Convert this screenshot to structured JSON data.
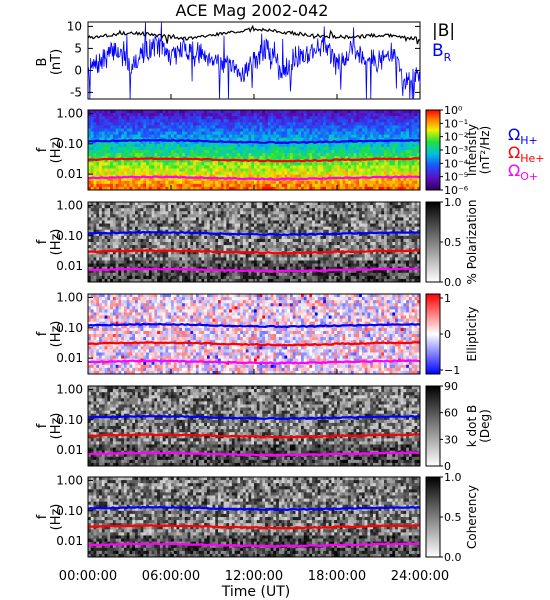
{
  "title": "ACE Mag 2002-042",
  "x_axis": {
    "label": "Time (UT)",
    "ticks": [
      "00:00:00",
      "06:00:00",
      "12:00:00",
      "18:00:00",
      "24:00:00"
    ],
    "range_hours": [
      0,
      24
    ]
  },
  "colors": {
    "B_total": "#000000",
    "B_R": "#0000ff",
    "omega_H": "#0000ff",
    "omega_He": "#ff0000",
    "omega_O": "#ff00ff"
  },
  "chart_data": [
    {
      "type": "line",
      "panel": "B",
      "ylabel": "B",
      "yunit": "(nT)",
      "ylim": [
        -6.5,
        11
      ],
      "yticks": [
        "10",
        "5",
        "0",
        "-5"
      ],
      "legend": [
        "|B|",
        "B"
      ],
      "legend_subscript": [
        "",
        "R"
      ],
      "series": [
        {
          "name": "|B|",
          "x": [
            0,
            1,
            2,
            3,
            4,
            5,
            6,
            7,
            8,
            9,
            10,
            11,
            12,
            13,
            14,
            15,
            16,
            17,
            18,
            19,
            20,
            21,
            22,
            23,
            24
          ],
          "values": [
            7.5,
            7.8,
            8.2,
            8.5,
            8.3,
            8.0,
            7.6,
            7.2,
            7.5,
            8.0,
            8.5,
            9.0,
            9.3,
            9.2,
            8.7,
            8.4,
            8.0,
            7.8,
            7.6,
            7.4,
            7.8,
            8.0,
            7.8,
            7.5,
            7.2
          ]
        },
        {
          "name": "BR",
          "x": [
            0,
            1,
            2,
            3,
            4,
            5,
            6,
            7,
            8,
            9,
            10,
            11,
            12,
            13,
            14,
            15,
            16,
            17,
            18,
            19,
            20,
            21,
            22,
            23,
            24
          ],
          "values": [
            0,
            2,
            5,
            1,
            4,
            6,
            3,
            5,
            4,
            3,
            1,
            -1,
            2,
            5,
            0,
            3,
            4,
            6,
            1,
            5,
            3,
            2,
            4,
            -3,
            -1
          ]
        }
      ]
    },
    {
      "type": "heatmap",
      "panel": "intensity",
      "ylabel": "f",
      "yunit": "(Hz)",
      "yticks": [
        "1.00",
        "0.10",
        "0.01"
      ],
      "colorbar_label": "Intensity",
      "colorbar_unit": "(nT²/Hz)",
      "colorbar_ticks": [
        "10⁰",
        "10⁻¹",
        "10⁻²",
        "10⁻³",
        "10⁻⁴",
        "10⁻⁵",
        "10⁻⁶"
      ],
      "colorscale": "rainbow"
    },
    {
      "type": "heatmap",
      "panel": "polarization",
      "ylabel": "f",
      "yunit": "(Hz)",
      "yticks": [
        "1.00",
        "0.10",
        "0.01"
      ],
      "colorbar_label": "% Polarization",
      "colorbar_ticks": [
        "1.0",
        "0.5",
        "0.0"
      ],
      "colorscale": "gray"
    },
    {
      "type": "heatmap",
      "panel": "ellipticity",
      "ylabel": "f",
      "yunit": "(Hz)",
      "yticks": [
        "1.00",
        "0.10",
        "0.01"
      ],
      "colorbar_label": "Ellipticity",
      "colorbar_ticks": [
        "1",
        "0",
        "−1"
      ],
      "colorscale": "red-white-blue"
    },
    {
      "type": "heatmap",
      "panel": "kdotb",
      "ylabel": "f",
      "yunit": "(Hz)",
      "yticks": [
        "1.00",
        "0.10",
        "0.01"
      ],
      "colorbar_label": "k dot B",
      "colorbar_unit": "(Deg)",
      "colorbar_ticks": [
        "90",
        "60",
        "30",
        "0"
      ],
      "colorscale": "gray"
    },
    {
      "type": "heatmap",
      "panel": "coherency",
      "ylabel": "f",
      "yunit": "(Hz)",
      "yticks": [
        "1.00",
        "0.10",
        "0.01"
      ],
      "colorbar_label": "Coherency",
      "colorbar_ticks": [
        "1.0",
        "0.5",
        "0.0"
      ],
      "colorscale": "gray"
    }
  ],
  "gyro_lines": {
    "labels": [
      "Ω",
      "Ω",
      "Ω"
    ],
    "subscripts": [
      "H+",
      "He+",
      "O+"
    ],
    "freq_hz": [
      0.12,
      0.03,
      0.0075
    ]
  }
}
